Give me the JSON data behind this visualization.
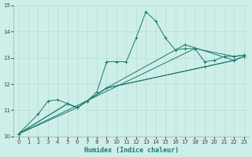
{
  "title": "",
  "xlabel": "Humidex (Indice chaleur)",
  "ylabel": "",
  "xlim": [
    -0.5,
    23.5
  ],
  "ylim": [
    10,
    15
  ],
  "xticks": [
    0,
    1,
    2,
    3,
    4,
    5,
    6,
    7,
    8,
    9,
    10,
    11,
    12,
    13,
    14,
    15,
    16,
    17,
    18,
    19,
    20,
    21,
    22,
    23
  ],
  "yticks": [
    10,
    11,
    12,
    13,
    14,
    15
  ],
  "background_color": "#ceeee8",
  "grid_color": "#b8ddd8",
  "line_color": "#1a7a6e",
  "series": [
    {
      "x": [
        0,
        2,
        3,
        4,
        5,
        6,
        7,
        8,
        9,
        10,
        11,
        12,
        13,
        14,
        15,
        16,
        17,
        18,
        19,
        20,
        21,
        22,
        23
      ],
      "y": [
        10.1,
        10.85,
        11.35,
        11.4,
        11.25,
        11.1,
        11.35,
        11.7,
        12.85,
        12.85,
        12.85,
        13.75,
        14.75,
        14.4,
        13.75,
        13.3,
        13.35,
        13.35,
        12.85,
        12.9,
        13.05,
        13.05,
        13.1
      ]
    },
    {
      "x": [
        0,
        18,
        22,
        23
      ],
      "y": [
        10.1,
        13.35,
        13.05,
        13.1
      ]
    },
    {
      "x": [
        0,
        5,
        6,
        7,
        9,
        17,
        22,
        23
      ],
      "y": [
        10.1,
        11.25,
        11.1,
        11.35,
        11.85,
        13.5,
        12.9,
        13.05
      ]
    },
    {
      "x": [
        0,
        5,
        6,
        7,
        9,
        19,
        22,
        23
      ],
      "y": [
        10.1,
        11.25,
        11.1,
        11.35,
        11.85,
        12.65,
        12.9,
        13.05
      ]
    },
    {
      "x": [
        0,
        6,
        9,
        22,
        23
      ],
      "y": [
        10.1,
        11.1,
        11.85,
        12.9,
        13.05
      ]
    }
  ]
}
